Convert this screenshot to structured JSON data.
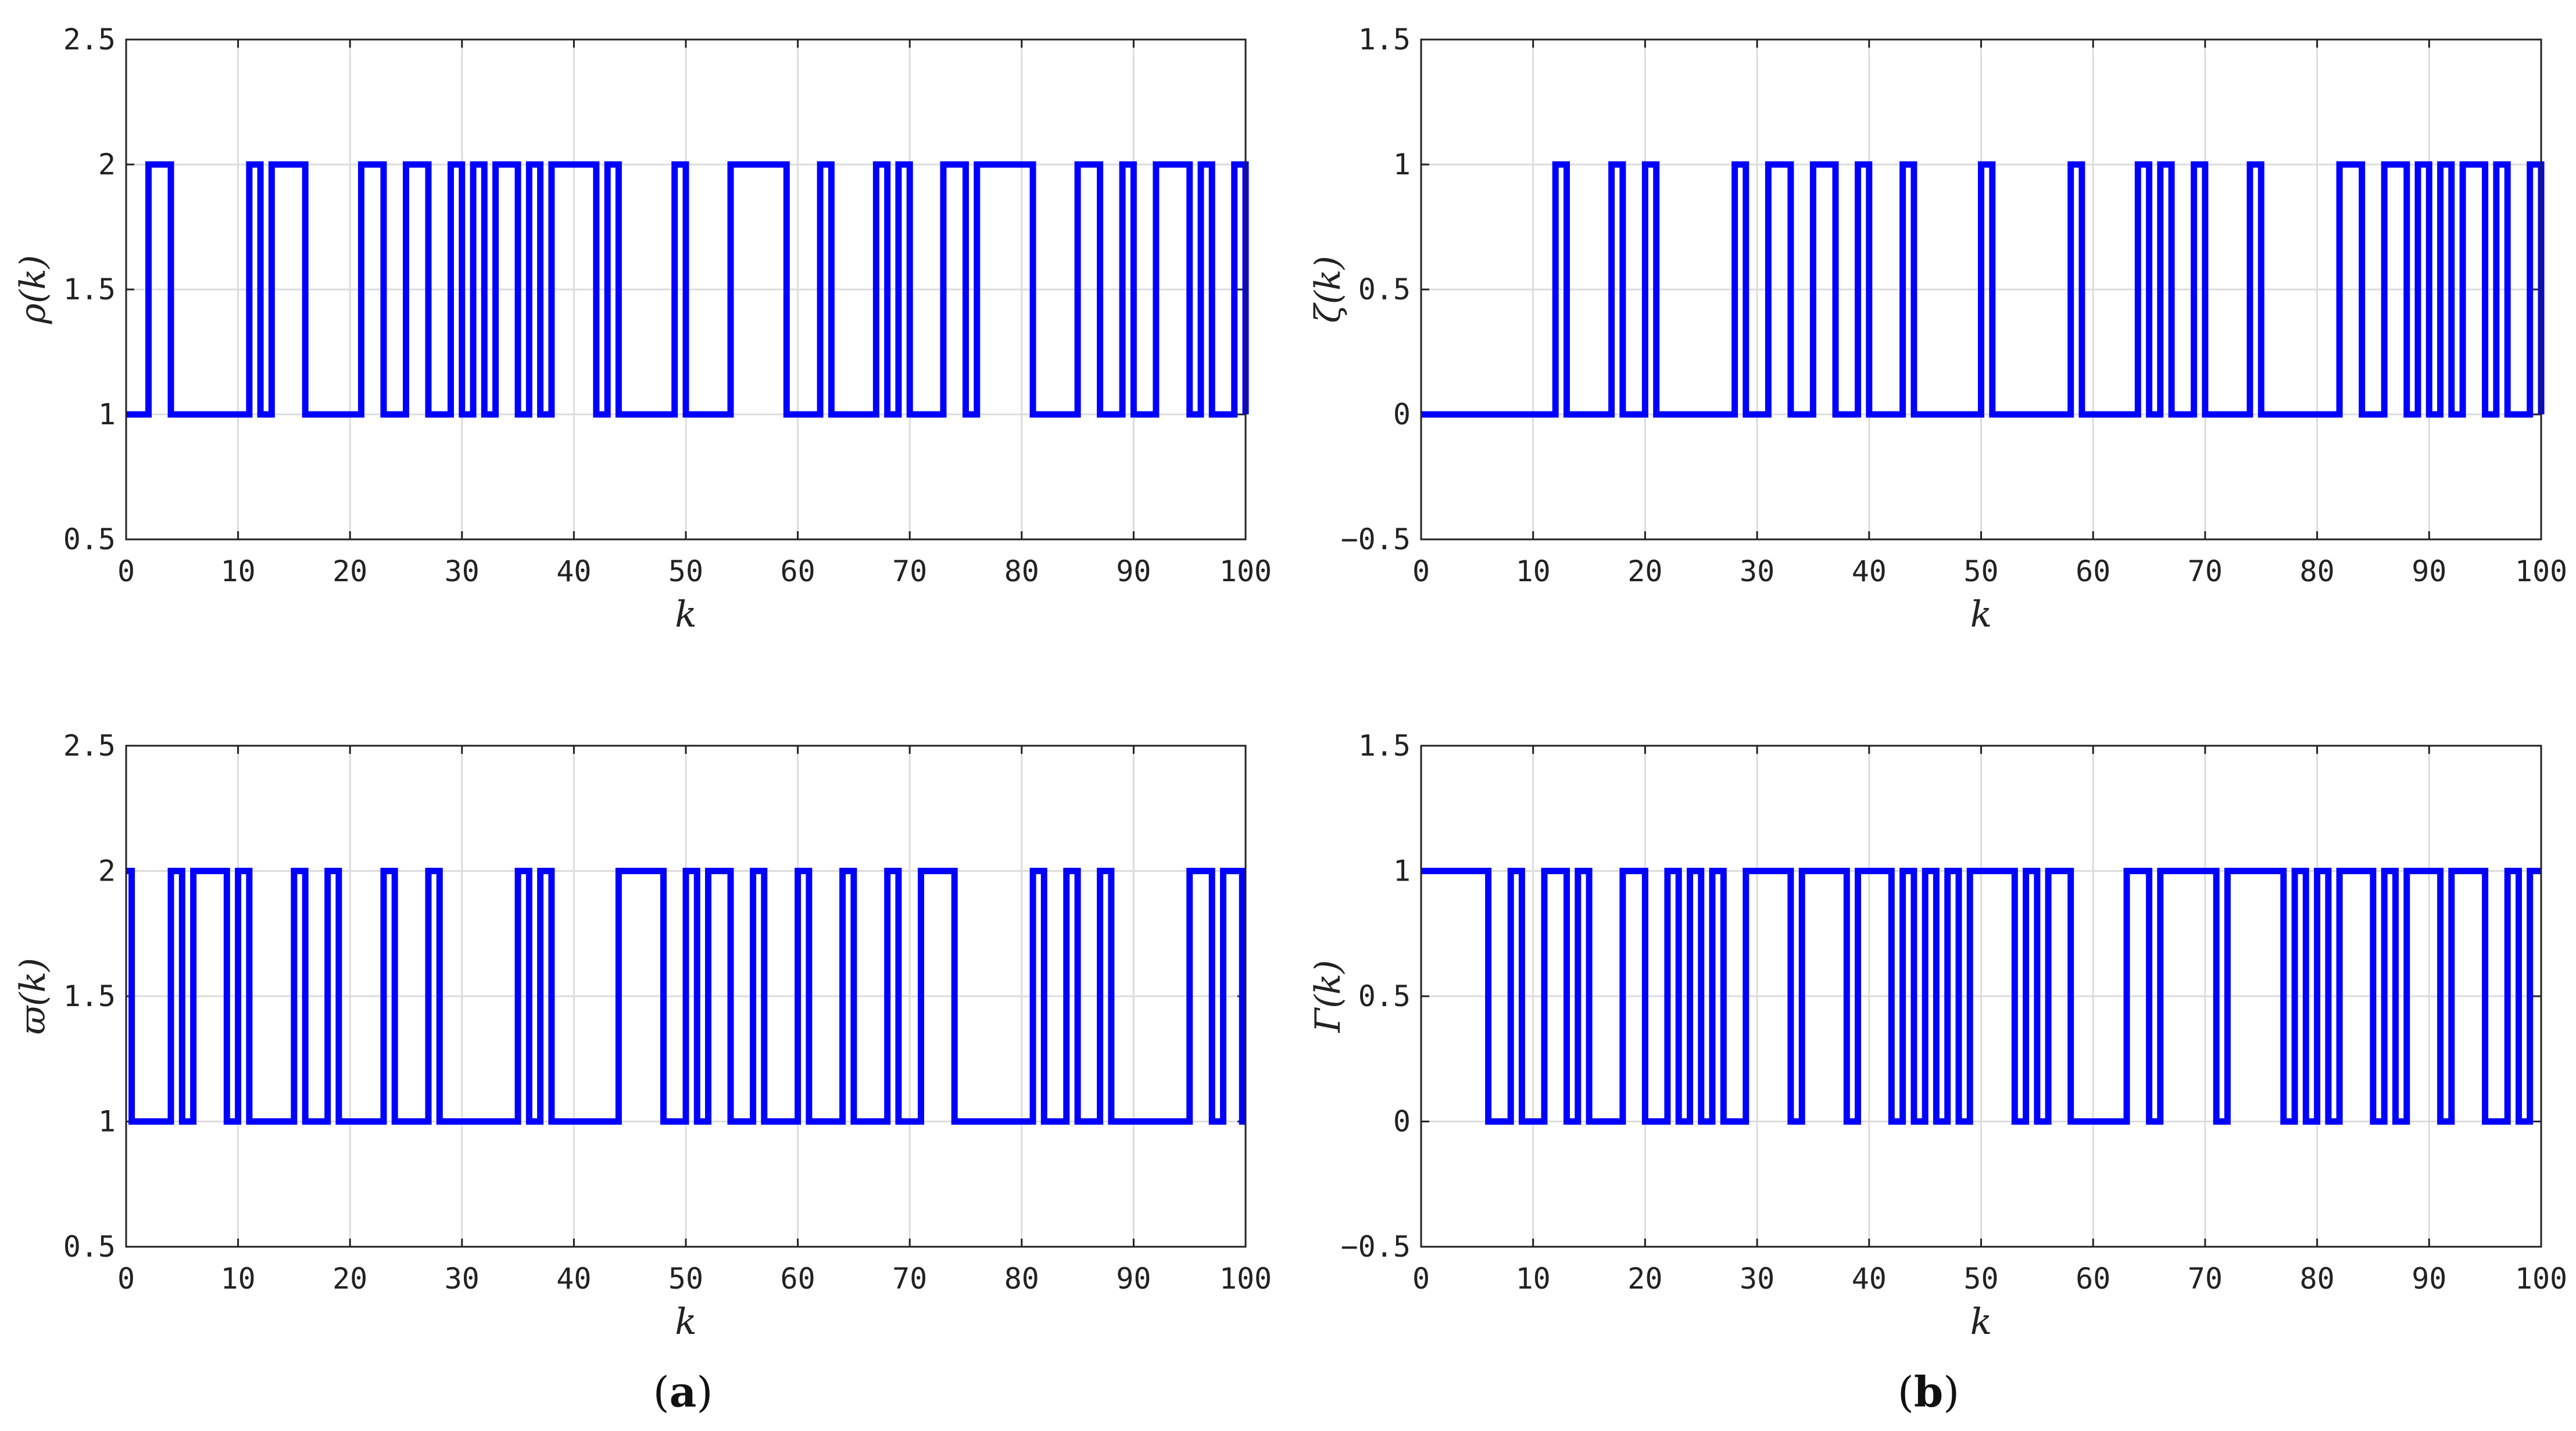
{
  "panel_labels": [
    {
      "prefix": "(",
      "letter": "a",
      "suffix": ")"
    },
    {
      "prefix": "(",
      "letter": "b",
      "suffix": ")"
    }
  ],
  "chart_data": [
    {
      "type": "line",
      "step": true,
      "panel": "a",
      "position": "top-left",
      "xlabel": "k",
      "ylabel": "ρ(k)",
      "xlim": [
        0,
        100
      ],
      "ylim": [
        0.5,
        2.5
      ],
      "xticks": [
        "0",
        "10",
        "20",
        "30",
        "40",
        "50",
        "60",
        "70",
        "80",
        "90",
        "100"
      ],
      "yticks": [
        "0.5",
        "1",
        "1.5",
        "2",
        "2.5"
      ],
      "grid": true,
      "color": "#0000ff",
      "initial": 1,
      "edges": [
        2,
        4,
        11,
        12,
        13,
        16,
        21,
        23,
        25,
        27,
        29,
        30,
        31,
        32,
        33,
        35,
        36,
        37,
        38,
        42,
        43,
        44,
        49,
        50,
        54,
        59,
        62,
        63,
        67,
        68,
        69,
        70,
        73,
        75,
        76,
        81,
        85,
        87,
        89,
        90,
        92,
        95,
        96,
        97,
        99,
        100
      ]
    },
    {
      "type": "line",
      "step": true,
      "panel": "a",
      "position": "bottom-left",
      "xlabel": "k",
      "ylabel": "ϖ(k)",
      "xlim": [
        0,
        100
      ],
      "ylim": [
        0.5,
        2.5
      ],
      "xticks": [
        "0",
        "10",
        "20",
        "30",
        "40",
        "50",
        "60",
        "70",
        "80",
        "90",
        "100"
      ],
      "yticks": [
        "0.5",
        "1",
        "1.5",
        "2",
        "2.5"
      ],
      "grid": true,
      "color": "#0000ff",
      "initial": 2,
      "edges": [
        0.5,
        4,
        5,
        6,
        9,
        10,
        11,
        15,
        16,
        18,
        19,
        23,
        24,
        27,
        28,
        35,
        36,
        37,
        38,
        44,
        48,
        50,
        51,
        52,
        54,
        56,
        57,
        60,
        61,
        64,
        65,
        68,
        69,
        71,
        74,
        81,
        82,
        84,
        85,
        87,
        88,
        95,
        97,
        98,
        99.7
      ]
    },
    {
      "type": "line",
      "step": true,
      "panel": "b",
      "position": "top-right",
      "xlabel": "k",
      "ylabel": "ζ(k)",
      "xlim": [
        0,
        100
      ],
      "ylim": [
        -0.5,
        1.5
      ],
      "xticks": [
        "0",
        "10",
        "20",
        "30",
        "40",
        "50",
        "60",
        "70",
        "80",
        "90",
        "100"
      ],
      "yticks": [
        "−0.5",
        "0",
        "0.5",
        "1",
        "1.5"
      ],
      "grid": true,
      "color": "#0000ff",
      "initial": 0,
      "edges": [
        12,
        13,
        17,
        18,
        20,
        21,
        28,
        29,
        31,
        33,
        35,
        37,
        39,
        40,
        43,
        44,
        50,
        51,
        58,
        59,
        64,
        65,
        66,
        67,
        69,
        70,
        74,
        75,
        82,
        84,
        86,
        88,
        89,
        90,
        91,
        92,
        93,
        95,
        96,
        97,
        99,
        100
      ]
    },
    {
      "type": "line",
      "step": true,
      "panel": "b",
      "position": "bottom-right",
      "xlabel": "k",
      "ylabel": "Γ(k)",
      "xlim": [
        0,
        100
      ],
      "ylim": [
        -0.5,
        1.5
      ],
      "xticks": [
        "0",
        "10",
        "20",
        "30",
        "40",
        "50",
        "60",
        "70",
        "80",
        "90",
        "100"
      ],
      "yticks": [
        "−0.5",
        "0",
        "0.5",
        "1",
        "1.5"
      ],
      "grid": true,
      "color": "#0000ff",
      "initial": 1,
      "edges": [
        6,
        8,
        9,
        11,
        13,
        14,
        15,
        18,
        20,
        22,
        23,
        24,
        25,
        26,
        27,
        29,
        33,
        34,
        38,
        39,
        42,
        43,
        44,
        45,
        46,
        47,
        48,
        49,
        53,
        54,
        55,
        56,
        58,
        63,
        65,
        66,
        71,
        72,
        77,
        78,
        79,
        80,
        81,
        82,
        85,
        86,
        87,
        88,
        91,
        92,
        95,
        97,
        98,
        99
      ]
    }
  ]
}
